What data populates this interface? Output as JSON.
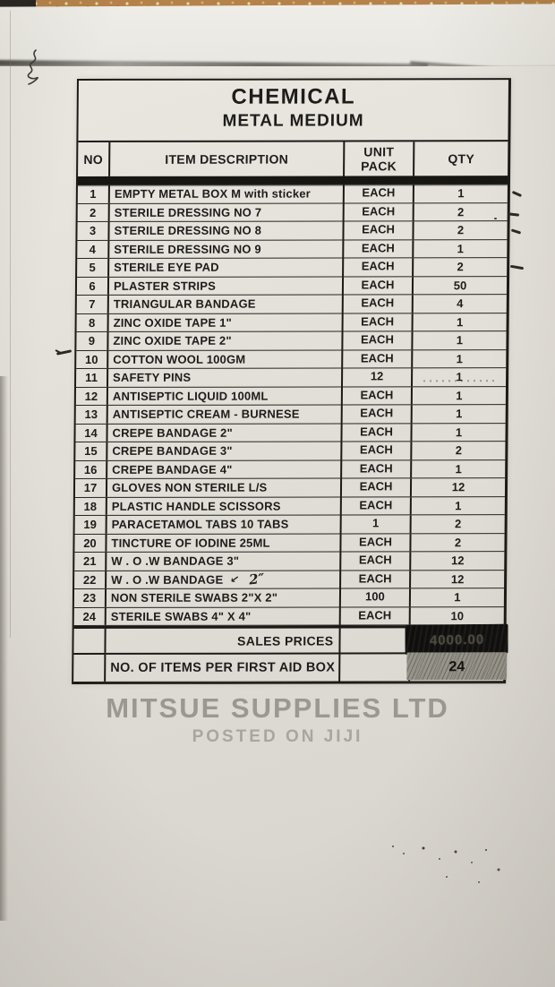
{
  "doc": {
    "title1": "CHEMICAL",
    "title2": "METAL MEDIUM",
    "headers": {
      "no": "NO",
      "description": "ITEM DESCRIPTION",
      "unit_pack": "UNIT\nPACK",
      "qty": "QTY"
    }
  },
  "rows": [
    {
      "no": "1",
      "desc": "EMPTY METAL BOX M with sticker",
      "unit": "EACH",
      "qty": "1"
    },
    {
      "no": "2",
      "desc": "STERILE DRESSING NO 7",
      "unit": "EACH",
      "qty": "2"
    },
    {
      "no": "3",
      "desc": "STERILE DRESSING NO 8",
      "unit": "EACH",
      "qty": "2"
    },
    {
      "no": "4",
      "desc": "STERILE DRESSING NO 9",
      "unit": "EACH",
      "qty": "1"
    },
    {
      "no": "5",
      "desc": "STERILE EYE PAD",
      "unit": "EACH",
      "qty": "2"
    },
    {
      "no": "6",
      "desc": "PLASTER STRIPS",
      "unit": "EACH",
      "qty": "50"
    },
    {
      "no": "7",
      "desc": "TRIANGULAR BANDAGE",
      "unit": "EACH",
      "qty": "4"
    },
    {
      "no": "8",
      "desc": "ZINC OXIDE TAPE 1\"",
      "unit": "EACH",
      "qty": "1"
    },
    {
      "no": "9",
      "desc": "ZINC OXIDE TAPE 2\"",
      "unit": "EACH",
      "qty": "1"
    },
    {
      "no": "10",
      "desc": "COTTON WOOL 100GM",
      "unit": "EACH",
      "qty": "1"
    },
    {
      "no": "11",
      "desc": "SAFETY PINS",
      "unit": "12",
      "qty": "1",
      "smudged": true
    },
    {
      "no": "12",
      "desc": "ANTISEPTIC LIQUID 100ML",
      "unit": "EACH",
      "qty": "1"
    },
    {
      "no": "13",
      "desc": "ANTISEPTIC CREAM - BURNESE",
      "unit": "EACH",
      "qty": "1"
    },
    {
      "no": "14",
      "desc": "CREPE BANDAGE 2\"",
      "unit": "EACH",
      "qty": "1"
    },
    {
      "no": "15",
      "desc": "CREPE BANDAGE 3\"",
      "unit": "EACH",
      "qty": "2"
    },
    {
      "no": "16",
      "desc": "CREPE BANDAGE 4\"",
      "unit": "EACH",
      "qty": "1"
    },
    {
      "no": "17",
      "desc": "GLOVES NON STERILE L/S",
      "unit": "EACH",
      "qty": "12"
    },
    {
      "no": "18",
      "desc": "PLASTIC HANDLE SCISSORS",
      "unit": "EACH",
      "qty": "1"
    },
    {
      "no": "19",
      "desc": "PARACETAMOL TABS 10 TABS",
      "unit": "1",
      "qty": "2"
    },
    {
      "no": "20",
      "desc": "TINCTURE OF IODINE 25ML",
      "unit": "EACH",
      "qty": "2"
    },
    {
      "no": "21",
      "desc": "W . O .W BANDAGE 3\"",
      "unit": "EACH",
      "qty": "12"
    },
    {
      "no": "22",
      "desc": "W . O .W BANDAGE",
      "hand": "2″",
      "unit": "EACH",
      "qty": "12"
    },
    {
      "no": "23",
      "desc": "NON STERILE SWABS 2\"X 2\"",
      "unit": "100",
      "qty": "1"
    },
    {
      "no": "24",
      "desc": "STERILE SWABS 4\" X 4\"",
      "unit": "EACH",
      "qty": "10"
    }
  ],
  "footer": {
    "sales_label": "SALES PRICES",
    "sales_value": "4000.00",
    "items_label": "NO. OF ITEMS PER FIRST AID BOX",
    "items_value": "24"
  },
  "watermark": {
    "line1": "MITSUE SUPPLIES LTD",
    "line2": "POSTED ON JIJI"
  },
  "colors": {
    "ink": "#1c1a17",
    "paper": "#e2dfd8",
    "surface_tan": "#b5824a",
    "redaction_black": "#100f0d",
    "scribble_gray": "#98958c",
    "watermark_gray": "#8a8781"
  }
}
